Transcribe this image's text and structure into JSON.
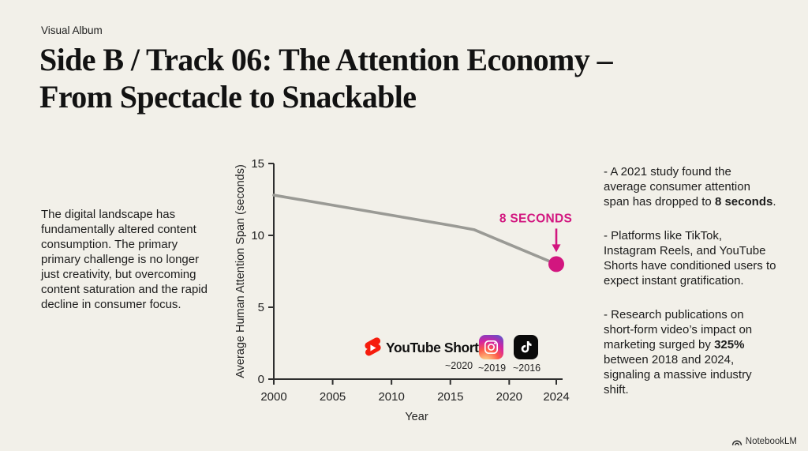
{
  "page": {
    "bg_color": "#f2f0e9",
    "kicker": "Visual Album",
    "title_line1": "Side B / Track 06: The Attention Economy –",
    "title_line2": "From Spectacle to Snackable"
  },
  "left_panel": {
    "text": "The digital landscape has fundamentally altered content consumption. The primary primary challenge is no longer just creativity, but overcoming content saturation and the rapid decline in consumer focus."
  },
  "right_panel": {
    "bullets": [
      {
        "pre": "- A 2021 study found the average consumer attention span has dropped to ",
        "bold": "8 seconds",
        "post": "."
      },
      {
        "pre": "- Platforms like TikTok, Instagram Reels, and YouTube Shorts have conditioned users to expect instant gratification.",
        "bold": "",
        "post": ""
      },
      {
        "pre": "- Research publications on short-form video’s impact on marketing surged by ",
        "bold": "325%",
        "post": " between 2018 and 2024, signaling a massive industry shift."
      }
    ]
  },
  "chart_data": {
    "type": "line",
    "title": "",
    "xlabel": "Year",
    "ylabel": "Average Human Attention Span (seconds)",
    "x": [
      2000,
      2005,
      2010,
      2015,
      2017,
      2024
    ],
    "values": [
      12.8,
      12.1,
      11.4,
      10.7,
      10.4,
      8
    ],
    "xlim": [
      2000,
      2024
    ],
    "ylim": [
      0,
      15
    ],
    "xticks": [
      2000,
      2005,
      2010,
      2015,
      2020,
      2024
    ],
    "yticks": [
      0,
      5,
      10,
      15
    ],
    "grid": false,
    "legend": "none",
    "line_color": "#9a9a95",
    "axis_color": "#2f2f2f",
    "tick_label_color": "#222222",
    "annotation": {
      "text": "8 SECONDS",
      "x": 2024,
      "y": 8,
      "color": "#d2167f"
    }
  },
  "logos": {
    "youtube_shorts": {
      "label": "YouTube Shorts",
      "year": "~2020",
      "icon_color": "#f61c0d"
    },
    "instagram": {
      "year": "~2019"
    },
    "tiktok": {
      "year": "~2016"
    }
  },
  "footer": {
    "brand": "NotebookLM"
  }
}
